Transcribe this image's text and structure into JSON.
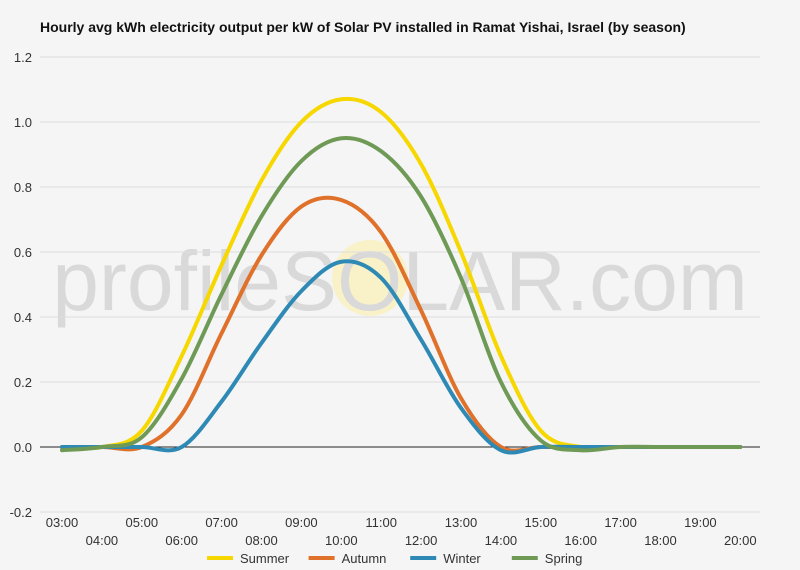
{
  "chart_data": {
    "type": "line",
    "title": "Hourly avg kWh electricity output per kW of Solar PV installed in Ramat Yishai, Israel (by season)",
    "watermark": "profileSOLAR.com",
    "x": [
      "03:00",
      "04:00",
      "05:00",
      "06:00",
      "07:00",
      "08:00",
      "09:00",
      "10:00",
      "11:00",
      "12:00",
      "13:00",
      "14:00",
      "15:00",
      "16:00",
      "17:00",
      "18:00",
      "19:00",
      "20:00"
    ],
    "ylim": [
      -0.2,
      1.2
    ],
    "yticks": [
      "-0.2",
      "0.0",
      "0.2",
      "0.4",
      "0.6",
      "0.8",
      "1.0",
      "1.2"
    ],
    "legend_position": "bottom",
    "series": [
      {
        "name": "Summer",
        "color": "#f6d700",
        "values": [
          0.0,
          0.0,
          0.05,
          0.28,
          0.56,
          0.82,
          1.0,
          1.07,
          1.03,
          0.87,
          0.6,
          0.28,
          0.05,
          0.0,
          0.0,
          0.0,
          0.0,
          0.0
        ]
      },
      {
        "name": "Autumn",
        "color": "#e0712b",
        "values": [
          0.0,
          0.0,
          0.0,
          0.1,
          0.35,
          0.59,
          0.74,
          0.76,
          0.66,
          0.42,
          0.15,
          0.0,
          0.0,
          0.0,
          0.0,
          0.0,
          0.0,
          0.0
        ]
      },
      {
        "name": "Winter",
        "color": "#2e8ab5",
        "values": [
          0.0,
          0.0,
          0.0,
          0.0,
          0.14,
          0.32,
          0.48,
          0.57,
          0.52,
          0.33,
          0.12,
          -0.01,
          0.0,
          0.0,
          0.0,
          0.0,
          0.0,
          0.0
        ]
      },
      {
        "name": "Spring",
        "color": "#6f9a56",
        "values": [
          -0.01,
          0.0,
          0.03,
          0.21,
          0.47,
          0.71,
          0.88,
          0.95,
          0.91,
          0.77,
          0.52,
          0.2,
          0.02,
          -0.01,
          0.0,
          0.0,
          0.0,
          0.0
        ]
      }
    ]
  }
}
